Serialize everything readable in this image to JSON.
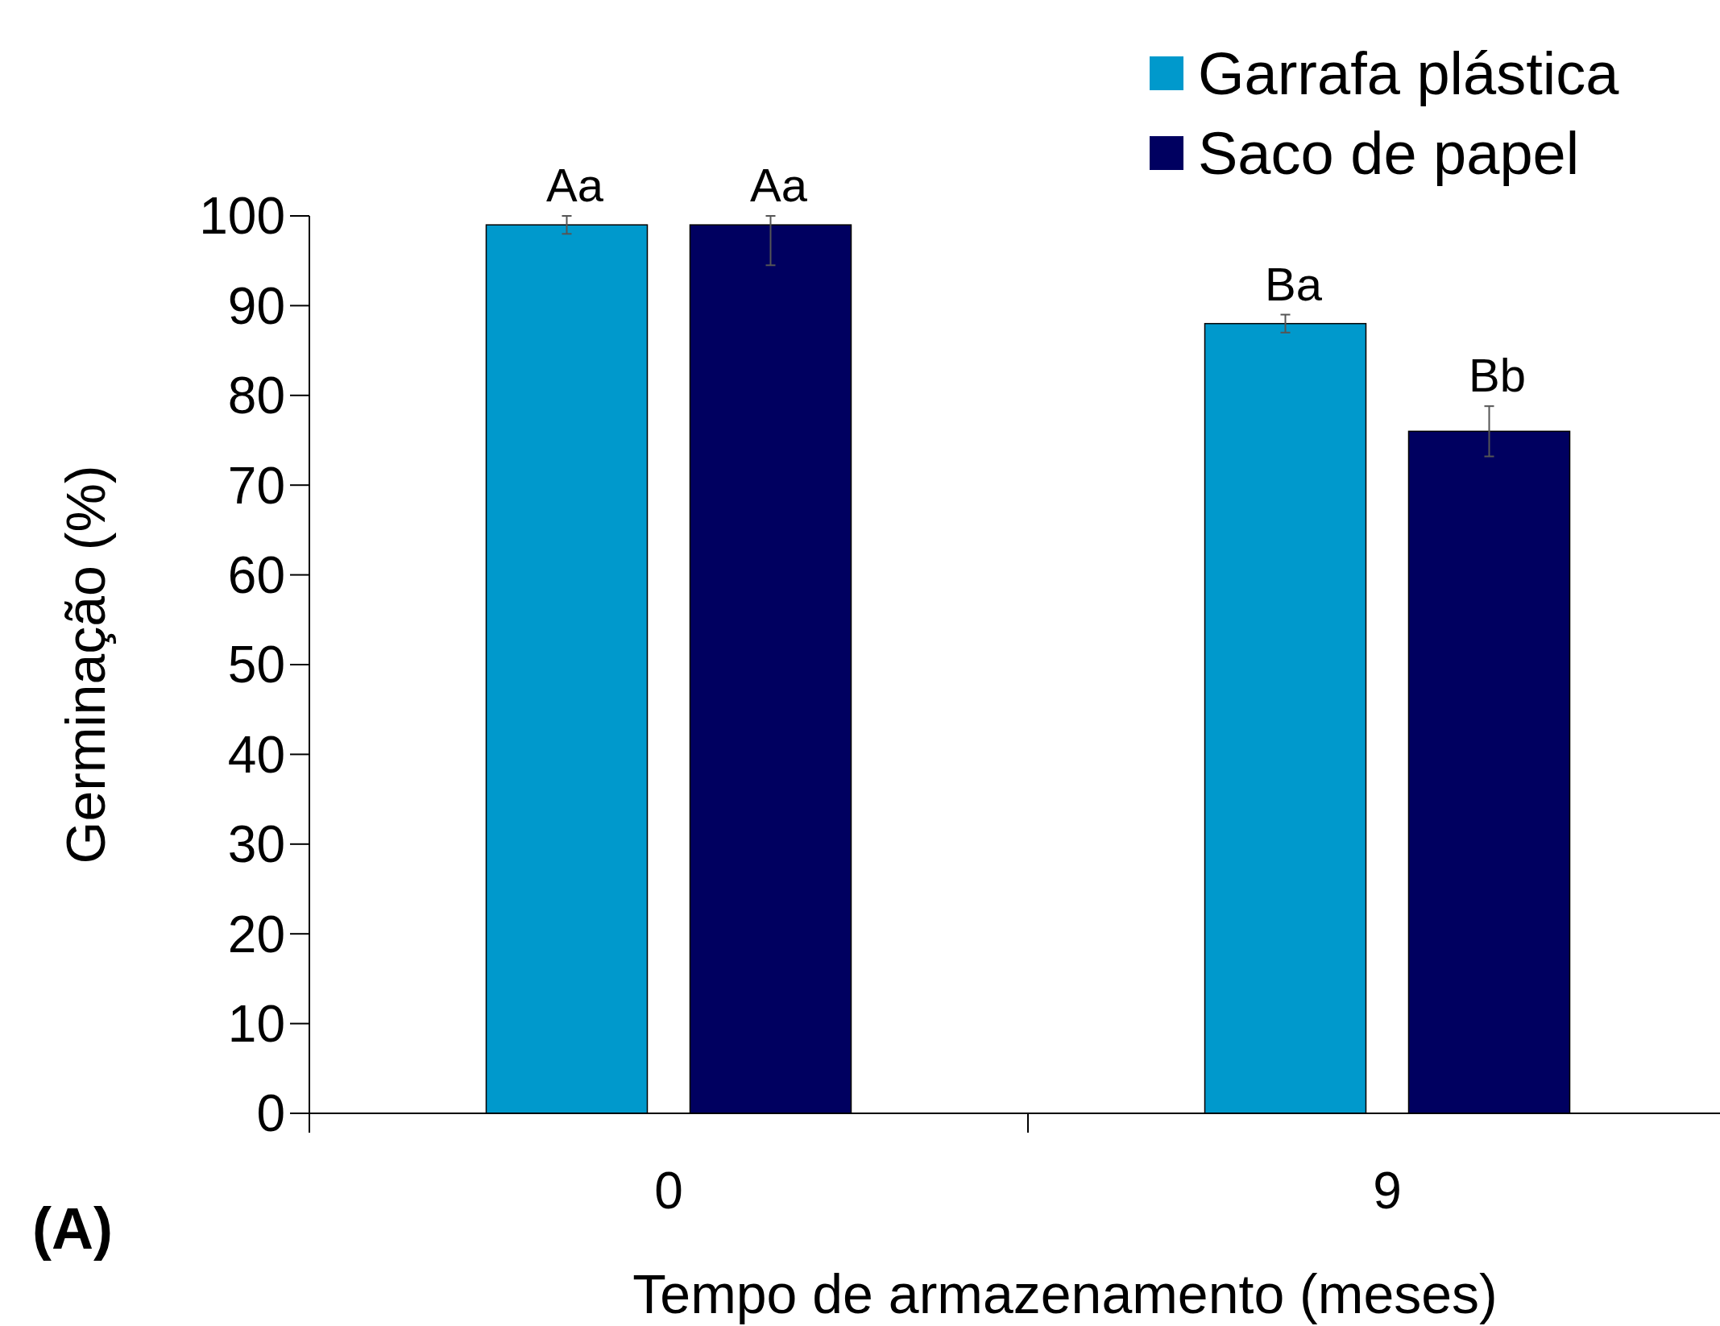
{
  "chart_data": {
    "type": "bar",
    "xlabel": "Tempo de armazenamento (meses)",
    "ylabel": "Germinação (%)",
    "categories": [
      "0",
      "9"
    ],
    "series": [
      {
        "name": "Garrafa plástica",
        "color": "#0099cc",
        "values": [
          99,
          88
        ],
        "errors": [
          1,
          1
        ],
        "value_labels": [
          "Aa",
          "Ba"
        ]
      },
      {
        "name": "Saco de papel",
        "color": "#000060",
        "values": [
          99,
          76
        ],
        "errors": [
          [
            94.5,
            100
          ],
          2.8
        ],
        "value_labels": [
          "Aa",
          "Bb"
        ]
      }
    ],
    "ylim": [
      0,
      100
    ],
    "yticks": [
      0,
      10,
      20,
      30,
      40,
      50,
      60,
      70,
      80,
      90,
      100
    ],
    "grid": false,
    "legend": "top right",
    "annotations": [
      "(A)"
    ]
  }
}
